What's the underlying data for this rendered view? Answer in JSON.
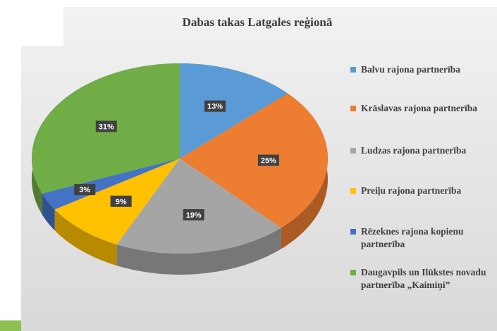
{
  "chart_data": {
    "type": "pie",
    "title": "Dabas takas Latgales reģionā",
    "categories": [
      "Balvu rajona partnerība",
      "Krāslavas rajona partnerība",
      "Ludzas rajona partnerība",
      "Preiļu rajona partnerība",
      "Rēzeknes rajona kopienu partnerība",
      "Daugavpils un Ilūkstes novadu partnerība „Kaimiņi”"
    ],
    "values": [
      13,
      25,
      19,
      9,
      3,
      31
    ],
    "value_labels": [
      "13%",
      "25%",
      "19%",
      "9%",
      "3%",
      "31%"
    ],
    "colors": [
      "#5b9bd5",
      "#ed7d31",
      "#a5a5a5",
      "#ffc000",
      "#4472c4",
      "#70ad47"
    ],
    "legend": "right"
  }
}
